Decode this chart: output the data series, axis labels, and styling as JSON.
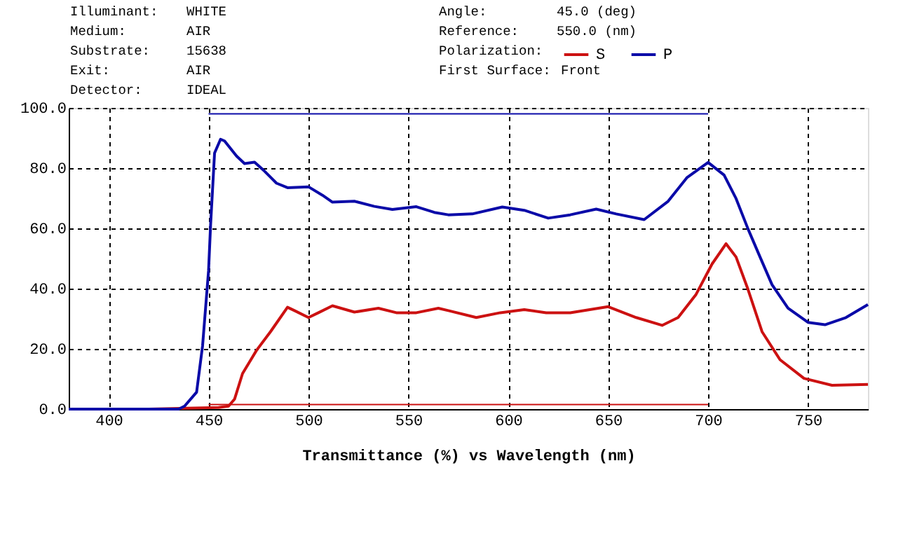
{
  "chart_data": {
    "type": "line",
    "xlabel": "Transmittance (%)  vs  Wavelength (nm)",
    "annotations": [
      "Illuminant:",
      "WHITE",
      "Medium:",
      "AIR",
      "Substrate:",
      "15638",
      "Exit:",
      "AIR",
      "Detector:",
      "IDEAL",
      "Angle:",
      "45.0 (deg)",
      "Reference:",
      "550.0 (nm)",
      "Polarization:",
      "First Surface:",
      "Front"
    ],
    "xlim": [
      380,
      780
    ],
    "xticks": [
      400,
      450,
      500,
      550,
      600,
      650,
      700,
      750
    ],
    "ylim": [
      0,
      100
    ],
    "yticks": [
      {
        "value": 0,
        "label": "0.0"
      },
      {
        "value": 20,
        "label": "20.0"
      },
      {
        "value": 40,
        "label": "40.0"
      },
      {
        "value": 60,
        "label": "60.0"
      },
      {
        "value": 80,
        "label": "80.0"
      },
      {
        "value": 100,
        "label": "100.0"
      }
    ],
    "grid": true,
    "legend": "top",
    "line_style": "solid",
    "series": [
      {
        "name": "S",
        "color": "#cc1111",
        "x": [
          380,
          420,
          455,
          460,
          463,
          467,
          474,
          481,
          489.5,
          493,
          500,
          505,
          512,
          523,
          535,
          544,
          554,
          565,
          570,
          584,
          596,
          608,
          619,
          631,
          650,
          664,
          677,
          685,
          694,
          702,
          709,
          714,
          720,
          727,
          736,
          748,
          762,
          780
        ],
        "values": [
          0,
          0,
          0.5,
          1,
          3.3,
          11.8,
          19.5,
          25.7,
          33.8,
          32.7,
          30.4,
          32,
          34.3,
          32.2,
          33.5,
          32,
          32,
          33.5,
          32.7,
          30.4,
          32,
          33,
          32,
          32,
          34,
          30.4,
          27.8,
          30.4,
          38.1,
          48.2,
          54.9,
          50.5,
          39.7,
          25.7,
          16.4,
          10.2,
          7.9,
          8.2
        ]
      },
      {
        "name": "P",
        "color": "#0a0aa8",
        "x": [
          380,
          420,
          435,
          438,
          444,
          447,
          450,
          451,
          453,
          456,
          458,
          464,
          468,
          473,
          478,
          484,
          489.5,
          500,
          507,
          512,
          523,
          533,
          542,
          554,
          563,
          570,
          582,
          597,
          608,
          620,
          631,
          644,
          654,
          668,
          680,
          689.5,
          700,
          708,
          714,
          720,
          726,
          732,
          740,
          750,
          758.5,
          769,
          780
        ],
        "values": [
          0,
          0,
          0,
          1,
          5.6,
          21,
          46,
          61,
          85,
          89.6,
          89,
          84,
          81.5,
          82,
          79,
          75,
          73.5,
          73.8,
          71,
          68.7,
          69,
          67.3,
          66.3,
          67.2,
          65.3,
          64.5,
          64.8,
          67.1,
          66,
          63.4,
          64.5,
          66.4,
          64.8,
          62.9,
          69,
          76.9,
          81.9,
          77.7,
          69.9,
          59.8,
          50.5,
          41.3,
          33.5,
          28.8,
          28,
          30.4,
          34.7
        ]
      },
      {
        "color": "#0a0aa8",
        "x": [
          450,
          700
        ],
        "values": [
          98,
          98
        ]
      },
      {
        "color": "#cc1111",
        "x": [
          450,
          700
        ],
        "values": [
          1.5,
          1.5
        ]
      }
    ]
  }
}
